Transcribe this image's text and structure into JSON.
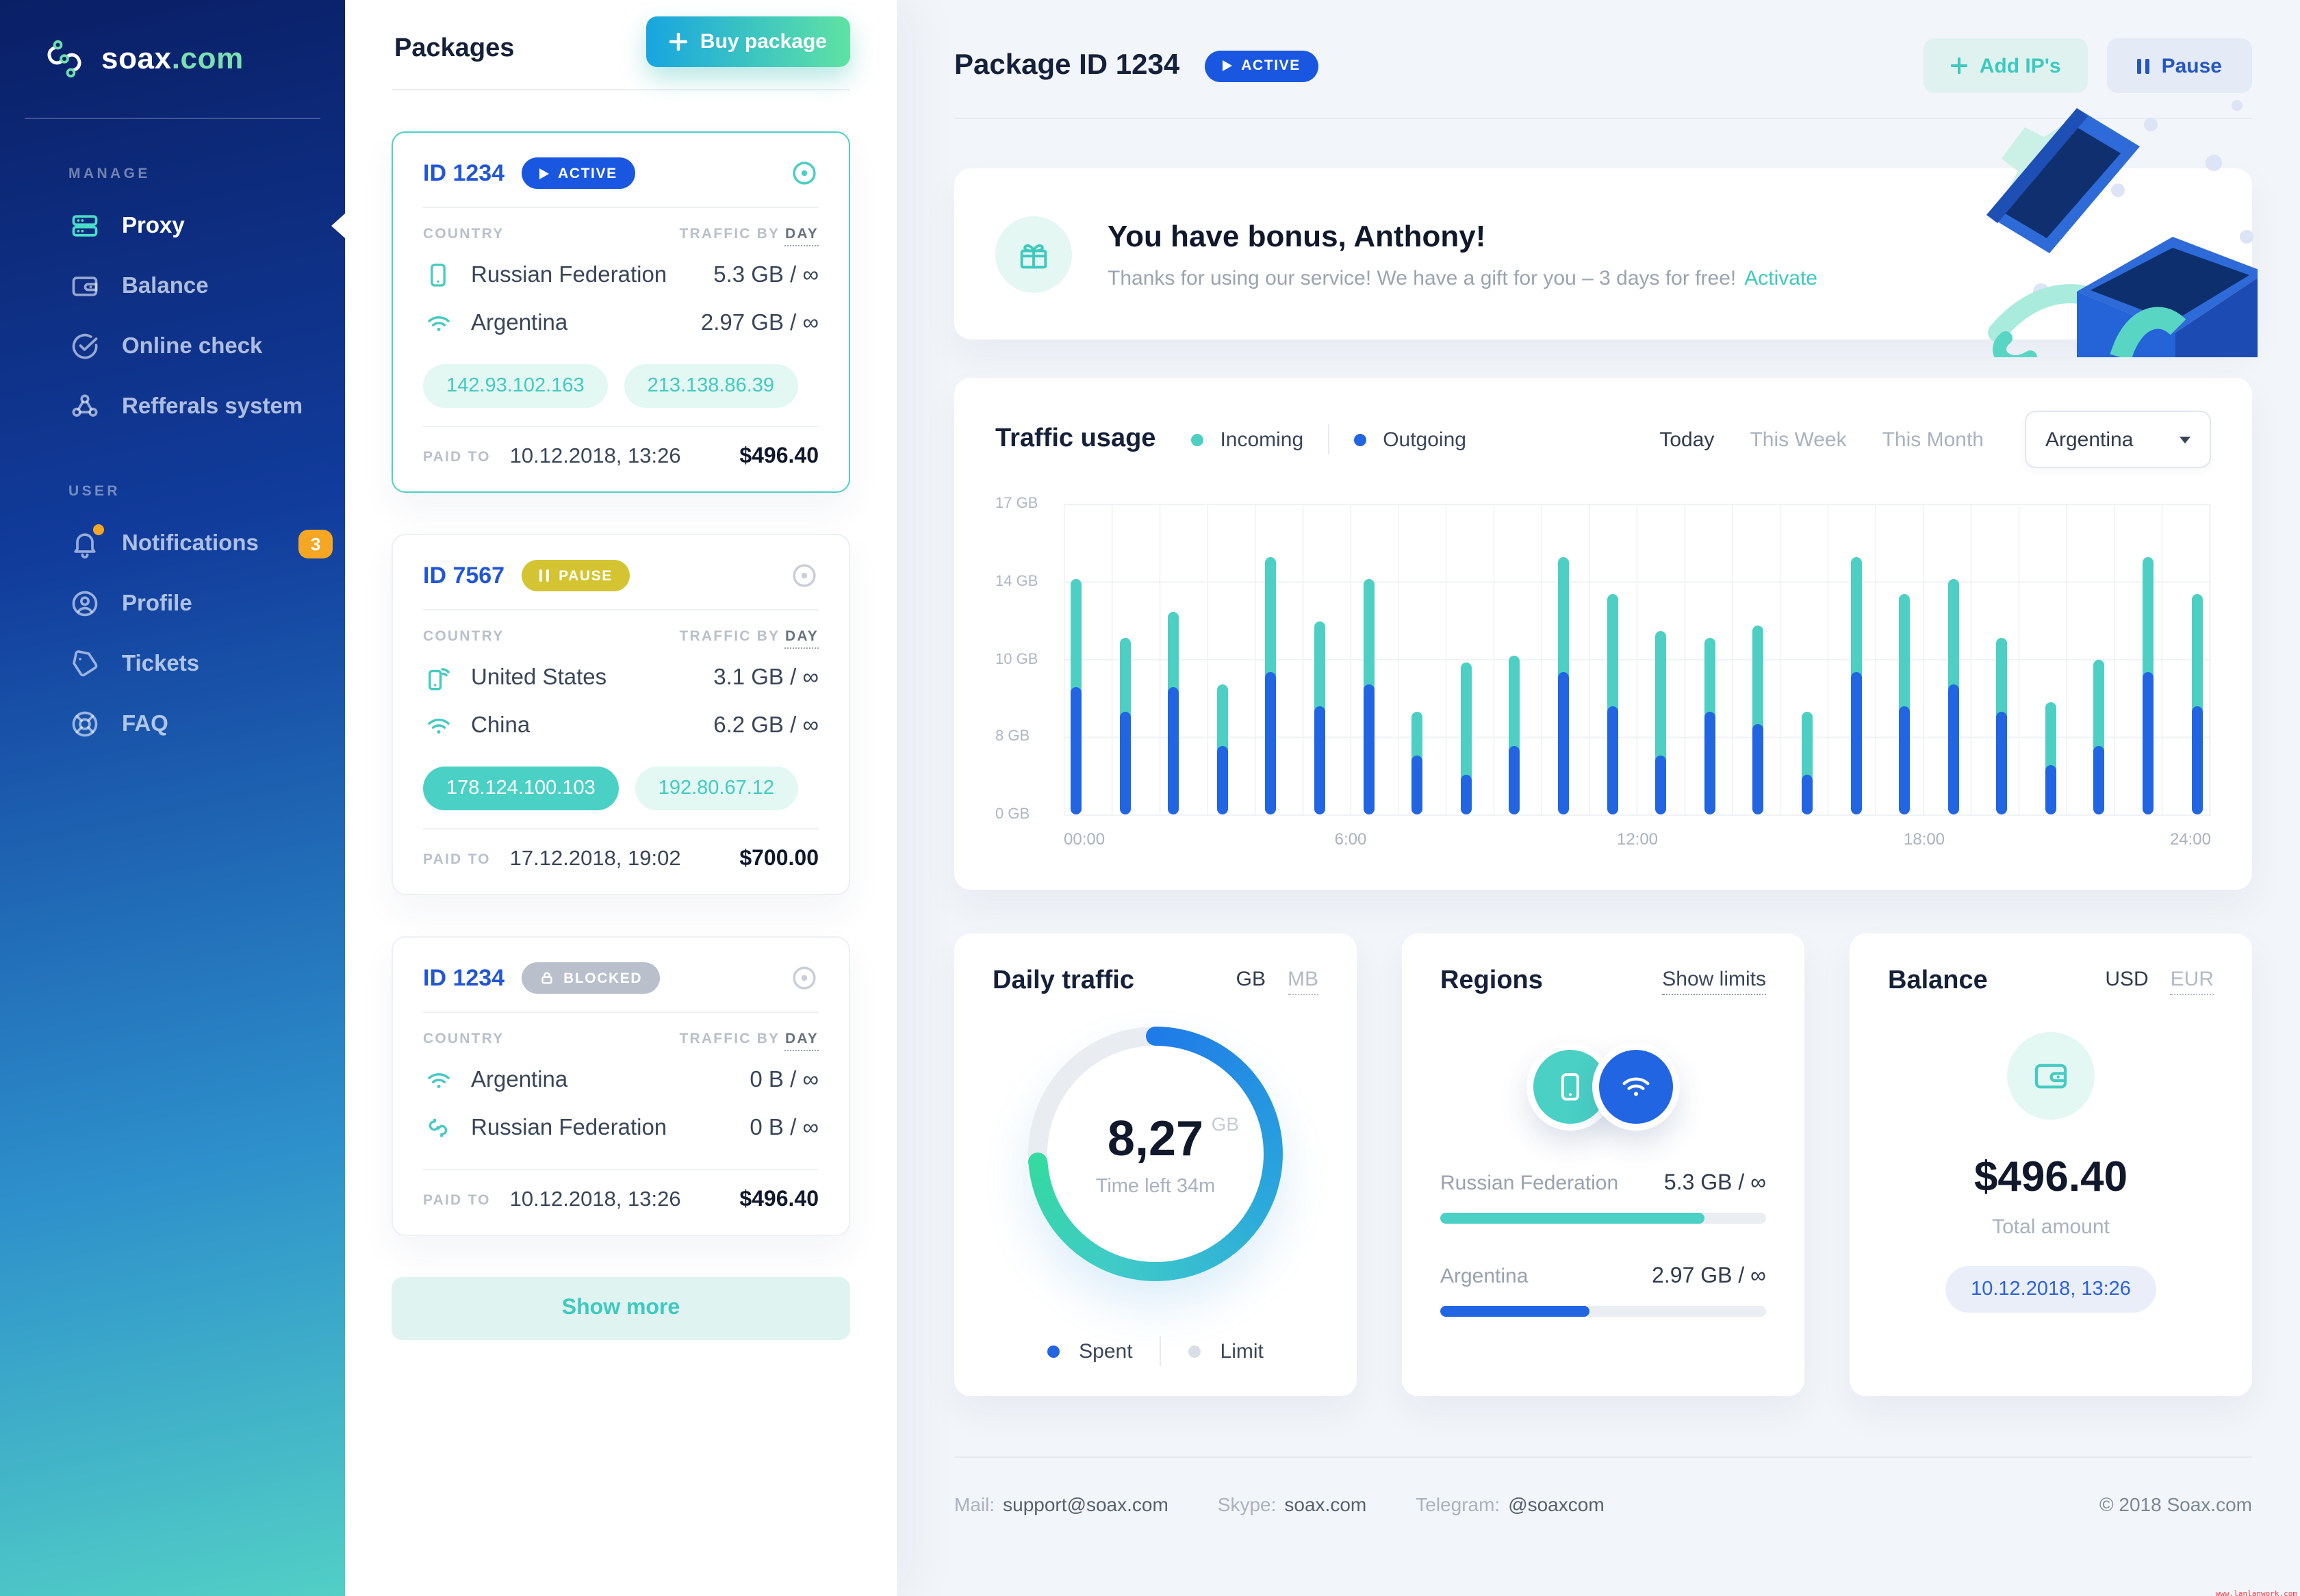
{
  "colors": {
    "accent_teal": "#4DCFC4",
    "accent_blue": "#2165E2",
    "badge_active": "#1A57E0",
    "badge_pause": "#D5C431",
    "badge_blocked": "#B9C0CC",
    "notification_orange": "#F5A623",
    "sidebar_gradient_top": "#0A1F66",
    "sidebar_gradient_bottom": "#52CFC6",
    "link_teal": "#3EC9BF"
  },
  "sidebar": {
    "logo": {
      "brand": "soax",
      "tld": ".com"
    },
    "manage": {
      "label": "MANAGE",
      "items": [
        {
          "label": "Proxy"
        },
        {
          "label": "Balance"
        },
        {
          "label": "Online check"
        },
        {
          "label": "Refferals system"
        }
      ]
    },
    "user": {
      "label": "USER",
      "items": [
        {
          "label": "Notifications",
          "badge": "3"
        },
        {
          "label": "Profile"
        },
        {
          "label": "Tickets"
        },
        {
          "label": "FAQ"
        }
      ]
    }
  },
  "packages": {
    "title": "Packages",
    "buy_button": "Buy package",
    "show_more": "Show more",
    "items": [
      {
        "id": "ID 1234",
        "status_label": "ACTIVE",
        "col_country": "COUNTRY",
        "col_traffic": "TRAFFIC BY",
        "col_mode": "DAY",
        "countries": [
          {
            "name": "Russian Federation",
            "value": "5.3 GB / ∞"
          },
          {
            "name": "Argentina",
            "value": "2.97 GB / ∞"
          }
        ],
        "ips": [
          {
            "text": "142.93.102.163"
          },
          {
            "text": "213.138.86.39"
          }
        ],
        "paid_label": "PAID TO",
        "paid_date": "10.12.2018, 13:26",
        "price": "$496.40"
      },
      {
        "id": "ID 7567",
        "status_label": "PAUSE",
        "col_country": "COUNTRY",
        "col_traffic": "TRAFFIC BY",
        "col_mode": "DAY",
        "countries": [
          {
            "name": "United States",
            "value": "3.1 GB / ∞"
          },
          {
            "name": "China",
            "value": "6.2 GB / ∞"
          }
        ],
        "ips": [
          {
            "text": "178.124.100.103"
          },
          {
            "text": "192.80.67.12"
          }
        ],
        "paid_label": "PAID TO",
        "paid_date": "17.12.2018, 19:02",
        "price": "$700.00"
      },
      {
        "id": "ID 1234",
        "status_label": "BLOCKED",
        "col_country": "COUNTRY",
        "col_traffic": "TRAFFIC BY",
        "col_mode": "DAY",
        "countries": [
          {
            "name": "Argentina",
            "value": "0 B / ∞"
          },
          {
            "name": "Russian Federation",
            "value": "0 B / ∞"
          }
        ],
        "ips": [],
        "paid_label": "PAID TO",
        "paid_date": "10.12.2018, 13:26",
        "price": "$496.40"
      }
    ]
  },
  "main": {
    "header": {
      "title": "Package ID 1234",
      "status": "ACTIVE",
      "add_button": "Add IP's",
      "pause_button": "Pause"
    },
    "bonus": {
      "title": "You have bonus, Anthony!",
      "message": "Thanks for using our service! We have a gift for you – 3 days for free!",
      "action": "Activate"
    },
    "traffic": {
      "title": "Traffic usage",
      "legend": [
        {
          "label": "Incoming"
        },
        {
          "label": "Outgoing"
        }
      ],
      "tabs": [
        {
          "label": "Today"
        },
        {
          "label": "This Week"
        },
        {
          "label": "This Month"
        }
      ],
      "region_select": "Argentina",
      "chart": {
        "type": "bar",
        "stacked": true,
        "y_ticks": [
          "17 GB",
          "14 GB",
          "10 GB",
          "8 GB",
          "0 GB"
        ],
        "x_ticks": [
          "00:00",
          "6:00",
          "12:00",
          "18:00",
          "24:00"
        ],
        "series_names": [
          "Outgoing (blue, bottom)",
          "Incoming (teal, top)"
        ],
        "bars": [
          {
            "total": 76,
            "outgoing": 41
          },
          {
            "total": 57,
            "outgoing": 33
          },
          {
            "total": 65,
            "outgoing": 41
          },
          {
            "total": 42,
            "outgoing": 22
          },
          {
            "total": 83,
            "outgoing": 46
          },
          {
            "total": 62,
            "outgoing": 35
          },
          {
            "total": 76,
            "outgoing": 42
          },
          {
            "total": 33,
            "outgoing": 19
          },
          {
            "total": 49,
            "outgoing": 13
          },
          {
            "total": 51,
            "outgoing": 22
          },
          {
            "total": 83,
            "outgoing": 46
          },
          {
            "total": 71,
            "outgoing": 35
          },
          {
            "total": 59,
            "outgoing": 19
          },
          {
            "total": 57,
            "outgoing": 33
          },
          {
            "total": 61,
            "outgoing": 29
          },
          {
            "total": 33,
            "outgoing": 13
          },
          {
            "total": 83,
            "outgoing": 46
          },
          {
            "total": 71,
            "outgoing": 35
          },
          {
            "total": 76,
            "outgoing": 42
          },
          {
            "total": 57,
            "outgoing": 33
          },
          {
            "total": 36,
            "outgoing": 16
          },
          {
            "total": 50,
            "outgoing": 22
          },
          {
            "total": 83,
            "outgoing": 46
          },
          {
            "total": 71,
            "outgoing": 35
          }
        ]
      }
    },
    "daily": {
      "title": "Daily traffic",
      "unit_active": "GB",
      "unit_alt": "MB",
      "value": "8,27",
      "value_unit": "GB",
      "time_left": "Time left 34m",
      "legend_spent": "Spent",
      "legend_limit": "Limit",
      "donut": {
        "spent_deg": 266,
        "gradient": [
          "#1F7BE8",
          "#2AA7DC",
          "#3FCBC8",
          "#35D9A2"
        ],
        "track": "#E9EDF2"
      }
    },
    "regions": {
      "title": "Regions",
      "action": "Show limits",
      "items": [
        {
          "name": "Russian Federation",
          "value": "5.3 GB / ∞",
          "pct": 81,
          "color": "#4AD0C5"
        },
        {
          "name": "Argentina",
          "value": "2.97 GB / ∞",
          "pct": 46,
          "color": "#2165E2"
        }
      ]
    },
    "balance": {
      "title": "Balance",
      "currency_active": "USD",
      "currency_alt": "EUR",
      "amount": "$496.40",
      "caption": "Total amount",
      "date": "10.12.2018, 13:26"
    }
  },
  "footer": {
    "mail_label": "Mail:",
    "mail": "support@soax.com",
    "skype_label": "Skype:",
    "skype": "soax.com",
    "telegram_label": "Telegram:",
    "telegram": "@soaxcom",
    "copyright": "© 2018 Soax.com"
  },
  "watermark": "www.lanlanwork.com"
}
